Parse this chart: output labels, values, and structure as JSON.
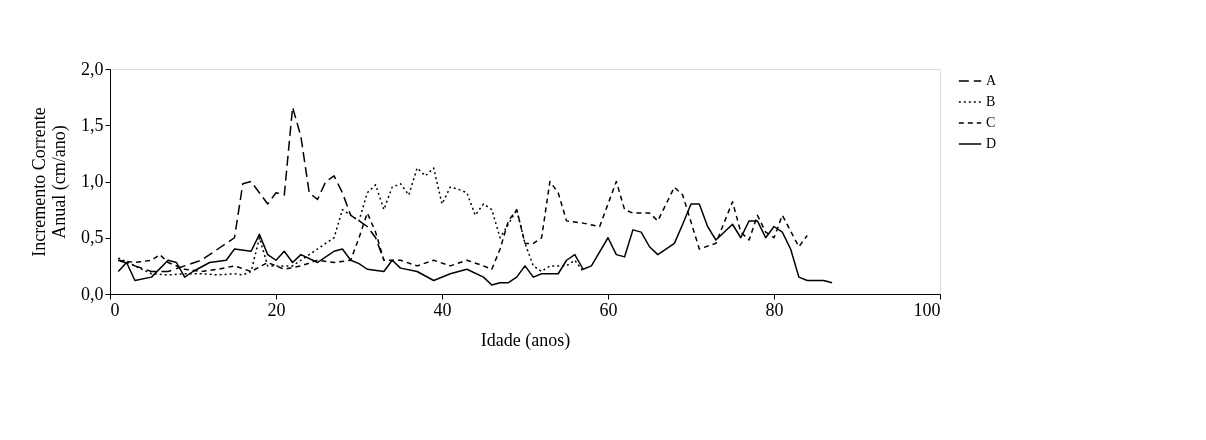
{
  "chart_data": {
    "type": "line",
    "xlabel": "Idade (anos)",
    "ylabel": "Incremento Corrente Anual (cm/ano)",
    "xlim": [
      0,
      100
    ],
    "xticks": [
      0,
      20,
      40,
      60,
      80,
      100
    ],
    "ylim": [
      0,
      2
    ],
    "yticks": [
      {
        "value": 0,
        "label": "0,0"
      },
      {
        "value": 0.5,
        "label": "0,5"
      },
      {
        "value": 1,
        "label": "1,0"
      },
      {
        "value": 1.5,
        "label": "1,5"
      },
      {
        "value": 2,
        "label": "2,0"
      }
    ],
    "grid": false,
    "legend": "right",
    "series": [
      {
        "name": "A",
        "color": "#000000",
        "line_style": "dashed",
        "x": [
          1,
          3,
          5,
          7,
          9,
          11,
          13,
          14,
          15,
          16,
          17,
          18,
          19,
          20,
          21,
          22,
          23,
          24,
          25,
          26,
          27,
          28,
          29,
          30,
          31,
          32,
          33
        ],
        "values": [
          0.3,
          0.25,
          0.2,
          0.2,
          0.25,
          0.3,
          0.4,
          0.45,
          0.5,
          0.98,
          1.0,
          0.9,
          0.8,
          0.9,
          0.88,
          1.66,
          1.4,
          0.9,
          0.84,
          1.0,
          1.05,
          0.9,
          0.7,
          0.65,
          0.6,
          0.5,
          0.3
        ]
      },
      {
        "name": "B",
        "color": "#000000",
        "line_style": "dotted",
        "x": [
          1,
          3,
          5,
          7,
          9,
          11,
          13,
          15,
          16,
          17,
          18,
          19,
          20,
          22,
          23,
          25,
          27,
          28,
          29,
          30,
          31,
          32,
          33,
          34,
          35,
          36,
          37,
          38,
          39,
          40,
          41,
          42,
          43,
          44,
          45,
          46,
          47,
          48,
          49,
          50,
          51,
          52,
          53,
          55,
          56,
          57
        ],
        "values": [
          0.32,
          0.25,
          0.18,
          0.17,
          0.18,
          0.18,
          0.17,
          0.18,
          0.17,
          0.2,
          0.5,
          0.25,
          0.25,
          0.25,
          0.3,
          0.4,
          0.5,
          0.75,
          0.7,
          0.65,
          0.9,
          0.97,
          0.75,
          0.95,
          0.98,
          0.88,
          1.12,
          1.05,
          1.12,
          0.8,
          0.95,
          0.93,
          0.9,
          0.7,
          0.8,
          0.75,
          0.5,
          0.62,
          0.75,
          0.45,
          0.25,
          0.2,
          0.25,
          0.25,
          0.3,
          0.2
        ]
      },
      {
        "name": "C",
        "color": "#000000",
        "line_style": "dashed",
        "x": [
          1,
          3,
          5,
          6,
          7,
          9,
          11,
          13,
          15,
          17,
          19,
          21,
          23,
          25,
          27,
          29,
          30,
          31,
          32,
          33,
          35,
          37,
          39,
          41,
          43,
          45,
          46,
          47,
          48,
          49,
          50,
          51,
          52,
          53,
          54,
          55,
          57,
          59,
          60,
          61,
          62,
          63,
          65,
          66,
          68,
          69,
          71,
          73,
          75,
          76,
          77,
          78,
          79,
          80,
          81,
          83,
          84
        ],
        "values": [
          0.3,
          0.28,
          0.3,
          0.35,
          0.28,
          0.22,
          0.2,
          0.22,
          0.25,
          0.2,
          0.28,
          0.22,
          0.25,
          0.3,
          0.28,
          0.3,
          0.5,
          0.72,
          0.55,
          0.3,
          0.3,
          0.25,
          0.3,
          0.25,
          0.3,
          0.25,
          0.22,
          0.4,
          0.65,
          0.75,
          0.45,
          0.45,
          0.5,
          1.0,
          0.9,
          0.65,
          0.63,
          0.6,
          0.8,
          1.0,
          0.75,
          0.72,
          0.72,
          0.65,
          0.95,
          0.88,
          0.4,
          0.45,
          0.82,
          0.55,
          0.48,
          0.7,
          0.55,
          0.5,
          0.7,
          0.42,
          0.52
        ]
      },
      {
        "name": "D",
        "color": "#000000",
        "line_style": "solid",
        "x": [
          1,
          2,
          3,
          5,
          7,
          8,
          9,
          10,
          12,
          14,
          15,
          17,
          18,
          19,
          20,
          21,
          22,
          23,
          25,
          27,
          28,
          29,
          30,
          31,
          33,
          34,
          35,
          37,
          39,
          41,
          43,
          45,
          46,
          47,
          48,
          49,
          50,
          51,
          52,
          54,
          55,
          56,
          57,
          58,
          60,
          61,
          62,
          63,
          64,
          65,
          66,
          68,
          69,
          70,
          71,
          72,
          73,
          75,
          76,
          77,
          78,
          79,
          80,
          81,
          82,
          83,
          84,
          86,
          87
        ],
        "values": [
          0.2,
          0.28,
          0.12,
          0.15,
          0.3,
          0.28,
          0.15,
          0.2,
          0.28,
          0.3,
          0.4,
          0.38,
          0.53,
          0.35,
          0.3,
          0.38,
          0.28,
          0.35,
          0.28,
          0.38,
          0.4,
          0.3,
          0.27,
          0.22,
          0.2,
          0.3,
          0.23,
          0.2,
          0.12,
          0.18,
          0.22,
          0.15,
          0.08,
          0.1,
          0.1,
          0.15,
          0.25,
          0.15,
          0.18,
          0.18,
          0.3,
          0.35,
          0.22,
          0.25,
          0.5,
          0.35,
          0.33,
          0.57,
          0.55,
          0.42,
          0.35,
          0.45,
          0.62,
          0.8,
          0.8,
          0.6,
          0.48,
          0.62,
          0.5,
          0.65,
          0.65,
          0.5,
          0.6,
          0.55,
          0.4,
          0.15,
          0.12,
          0.12,
          0.1
        ]
      }
    ]
  }
}
